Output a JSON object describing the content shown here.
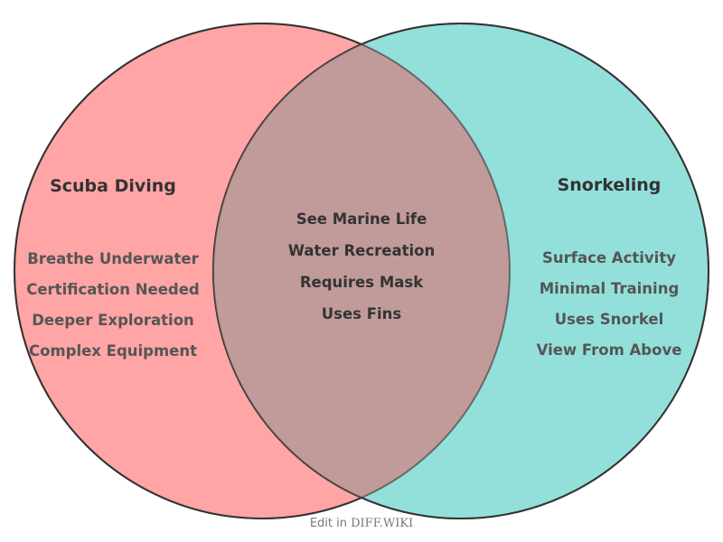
{
  "colors": {
    "left": "#ffa5a5",
    "right": "#93e0da",
    "overlap": "#c09b9a",
    "stroke": "#333333"
  },
  "left": {
    "title": "Scuba Diving",
    "items": [
      "Breathe Underwater",
      "Certification Needed",
      "Deeper Exploration",
      "Complex Equipment"
    ]
  },
  "right": {
    "title": "Snorkeling",
    "items": [
      "Surface Activity",
      "Minimal Training",
      "Uses Snorkel",
      "View From Above"
    ]
  },
  "overlap": {
    "items": [
      "See Marine Life",
      "Water Recreation",
      "Requires Mask",
      "Uses Fins"
    ]
  },
  "footer": {
    "prefix": "Edit in",
    "brand": "DIFF.WIKI"
  }
}
